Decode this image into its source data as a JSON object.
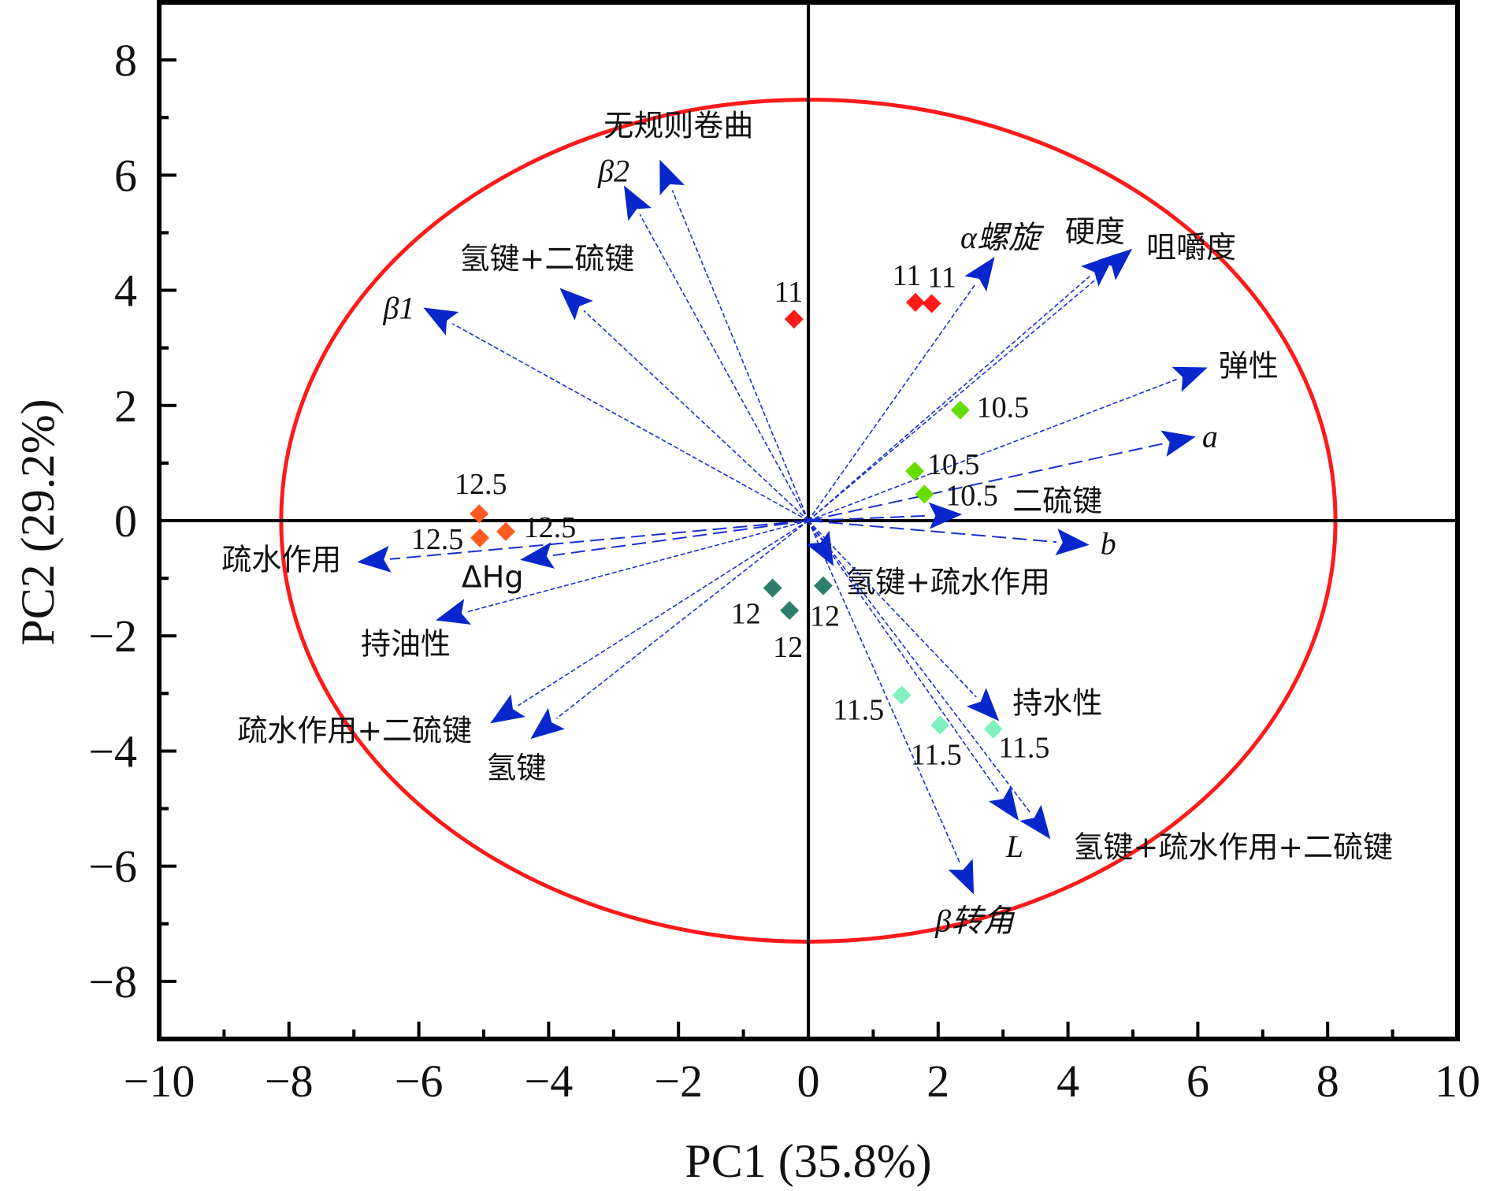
{
  "chart_data": {
    "type": "scatter",
    "subtype": "pca-biplot",
    "title": "",
    "xlabel": "PC1 (35.8%)",
    "ylabel": "PC2 (29.2%)",
    "xlim": [
      -10,
      10
    ],
    "ylim": [
      -9,
      9
    ],
    "x_ticks": [
      -10,
      -8,
      -6,
      -4,
      -2,
      0,
      2,
      4,
      6,
      8,
      10
    ],
    "y_ticks": [
      -8,
      -6,
      -4,
      -2,
      0,
      2,
      4,
      6,
      8
    ],
    "x_tick_labels": [
      "−10",
      "−8",
      "−6",
      "−4",
      "−2",
      "0",
      "2",
      "4",
      "6",
      "8",
      "10"
    ],
    "y_tick_labels": [
      "−8",
      "−6",
      "−4",
      "−2",
      "0",
      "2",
      "4",
      "6",
      "8"
    ],
    "grid": false,
    "zero_lines": true,
    "confidence_ellipse": {
      "center": [
        0,
        0
      ],
      "radius_x": 8.12,
      "radius_y": 7.31,
      "color": "#ff1a1a"
    },
    "colors": {
      "arrow": "#0727cc",
      "arrow_line": "#1a2fd0",
      "group_10_5": "#66dd00",
      "group_11": "#ff1a1a",
      "group_11_5": "#7ff0c0",
      "group_12": "#2e7d6b",
      "group_12_5": "#ff5a1f"
    },
    "loadings": [
      {
        "label": "无规则卷曲",
        "x": -2.29,
        "y": 6.27,
        "italic": false,
        "style": "dotted"
      },
      {
        "label": "β2",
        "x": -2.84,
        "y": 5.82,
        "italic": true,
        "style": "dotted"
      },
      {
        "label": "氢键+二硫键",
        "x": -3.83,
        "y": 4.04,
        "italic": false,
        "style": "dotted"
      },
      {
        "label": "β1",
        "x": -5.93,
        "y": 3.7,
        "italic": true,
        "style": "dotted"
      },
      {
        "label": "α螺旋",
        "x": 2.87,
        "y": 4.58,
        "italic": true,
        "style": "dotted"
      },
      {
        "label": "硬度",
        "x": 4.72,
        "y": 4.62,
        "italic": false,
        "style": "dotted"
      },
      {
        "label": "咀嚼度",
        "x": 4.99,
        "y": 4.72,
        "italic": false,
        "style": "dotted"
      },
      {
        "label": "弹性",
        "x": 6.15,
        "y": 2.66,
        "italic": false,
        "style": "dotted"
      },
      {
        "label": "a",
        "x": 5.97,
        "y": 1.46,
        "italic": true,
        "style": "dashed"
      },
      {
        "label": "二硫键",
        "x": 2.37,
        "y": 0.11,
        "italic": false,
        "style": "dashed"
      },
      {
        "label": "b",
        "x": 4.33,
        "y": -0.42,
        "italic": true,
        "style": "dashed"
      },
      {
        "label": "氢键+疏水作用",
        "x": 0.39,
        "y": -0.79,
        "italic": false,
        "style": "dotted"
      },
      {
        "label": "疏水作用",
        "x": -6.95,
        "y": -0.72,
        "italic": false,
        "style": "dashed"
      },
      {
        "label": "ΔHg",
        "x": -4.44,
        "y": -0.68,
        "italic": false,
        "style": "dashed"
      },
      {
        "label": "持油性",
        "x": -5.74,
        "y": -1.73,
        "italic": false,
        "style": "dotted"
      },
      {
        "label": "疏水作用+二硫键",
        "x": -4.9,
        "y": -3.52,
        "italic": false,
        "style": "dotted"
      },
      {
        "label": "氢键",
        "x": -4.28,
        "y": -3.79,
        "italic": false,
        "style": "dotted"
      },
      {
        "label": "持水性",
        "x": 2.94,
        "y": -3.48,
        "italic": false,
        "style": "dotted"
      },
      {
        "label": "L",
        "x": 3.24,
        "y": -5.21,
        "italic": true,
        "style": "dotted"
      },
      {
        "label": "氢键+疏水作用+二硫键",
        "x": 3.73,
        "y": -5.53,
        "italic": false,
        "style": "dotted"
      },
      {
        "label": "β转角",
        "x": 2.55,
        "y": -6.49,
        "italic": true,
        "style": "dotted"
      }
    ],
    "series": [
      {
        "name": "10.5",
        "color": "#66dd00",
        "points": [
          {
            "x": 2.34,
            "y": 1.92
          },
          {
            "x": 1.64,
            "y": 0.86
          },
          {
            "x": 1.79,
            "y": 0.46
          }
        ]
      },
      {
        "name": "11",
        "color": "#ff1a1a",
        "points": [
          {
            "x": -0.22,
            "y": 3.5
          },
          {
            "x": 1.65,
            "y": 3.79
          },
          {
            "x": 1.9,
            "y": 3.77
          }
        ]
      },
      {
        "name": "11.5",
        "color": "#7ff0c0",
        "points": [
          {
            "x": 1.44,
            "y": -3.03
          },
          {
            "x": 2.03,
            "y": -3.55
          },
          {
            "x": 2.85,
            "y": -3.62
          }
        ]
      },
      {
        "name": "12",
        "color": "#2e7d6b",
        "points": [
          {
            "x": -0.55,
            "y": -1.17
          },
          {
            "x": -0.29,
            "y": -1.56
          },
          {
            "x": 0.23,
            "y": -1.13
          }
        ]
      },
      {
        "name": "12.5",
        "color": "#ff5a1f",
        "points": [
          {
            "x": -5.07,
            "y": 0.12
          },
          {
            "x": -5.06,
            "y": -0.3
          },
          {
            "x": -4.66,
            "y": -0.19
          }
        ]
      }
    ]
  }
}
